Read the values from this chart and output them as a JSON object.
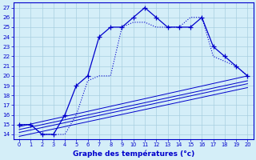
{
  "xlabel": "Graphe des températures (°c)",
  "xlim": [
    -0.5,
    20.5
  ],
  "ylim": [
    13.5,
    27.5
  ],
  "xticks": [
    0,
    1,
    2,
    3,
    4,
    5,
    6,
    7,
    8,
    9,
    10,
    11,
    12,
    13,
    14,
    15,
    16,
    17,
    18,
    19,
    20
  ],
  "yticks": [
    14,
    15,
    16,
    17,
    18,
    19,
    20,
    21,
    22,
    23,
    24,
    25,
    26,
    27
  ],
  "bg_color": "#d4eef8",
  "line_color": "#0000cc",
  "main_x": [
    0,
    1,
    2,
    3,
    4,
    5,
    6,
    7,
    8,
    9,
    10,
    11,
    12,
    13,
    14,
    15,
    16,
    17,
    18,
    19,
    20
  ],
  "main_y": [
    15,
    15,
    14,
    14,
    16,
    19,
    20,
    24,
    25,
    25,
    26,
    27,
    26,
    25,
    25,
    25,
    26,
    23,
    22,
    21,
    20
  ],
  "line2_x": [
    0,
    1,
    2,
    3,
    4,
    5,
    6,
    7,
    8,
    9,
    10,
    11,
    12,
    13,
    14,
    15,
    16,
    17,
    18,
    19,
    20
  ],
  "line2_y": [
    15,
    15,
    14,
    14,
    14,
    16,
    19.5,
    20,
    20,
    25,
    25.5,
    25.5,
    25,
    25,
    25,
    26,
    26,
    22,
    21.5,
    21,
    20
  ],
  "ref_lines": [
    {
      "x": [
        0,
        20
      ],
      "y": [
        14.8,
        20.0
      ]
    },
    {
      "x": [
        0,
        20
      ],
      "y": [
        14.5,
        19.5
      ]
    },
    {
      "x": [
        0,
        20
      ],
      "y": [
        14.2,
        19.2
      ]
    },
    {
      "x": [
        0,
        20
      ],
      "y": [
        13.8,
        18.8
      ]
    }
  ]
}
